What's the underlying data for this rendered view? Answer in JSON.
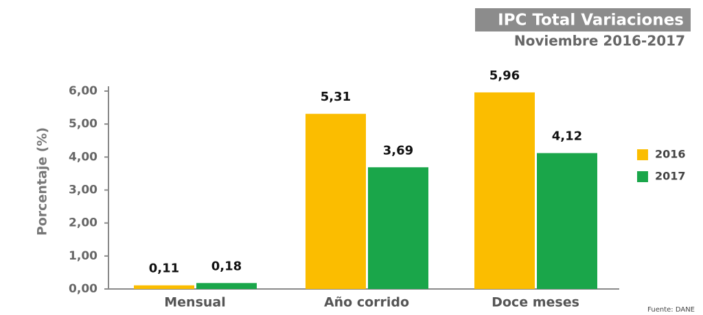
{
  "chart_data": {
    "type": "bar",
    "title": "IPC Total Variaciones",
    "subtitle": "Noviembre 2016-2017",
    "y_label": "Porcentaje (%)",
    "source": "Fuente: DANE",
    "categories": [
      "Mensual",
      "Año corrido",
      "Doce meses"
    ],
    "series": [
      {
        "name": "2016",
        "color": "#fbbd00",
        "values": [
          0.11,
          5.31,
          5.96
        ],
        "value_labels": [
          "0,11",
          "5,31",
          "5,96"
        ]
      },
      {
        "name": "2017",
        "color": "#1aa64a",
        "values": [
          0.18,
          3.69,
          4.12
        ],
        "value_labels": [
          "0,18",
          "3,69",
          "4,12"
        ]
      }
    ],
    "ylim": [
      0,
      6
    ],
    "yticks": [
      {
        "value": 0,
        "label": "0,00"
      },
      {
        "value": 1,
        "label": "1,00"
      },
      {
        "value": 2,
        "label": "2,00"
      },
      {
        "value": 3,
        "label": "3,00"
      },
      {
        "value": 4,
        "label": "4,00"
      },
      {
        "value": 5,
        "label": "5,00"
      },
      {
        "value": 6,
        "label": "6,00"
      }
    ],
    "legend": "right"
  }
}
